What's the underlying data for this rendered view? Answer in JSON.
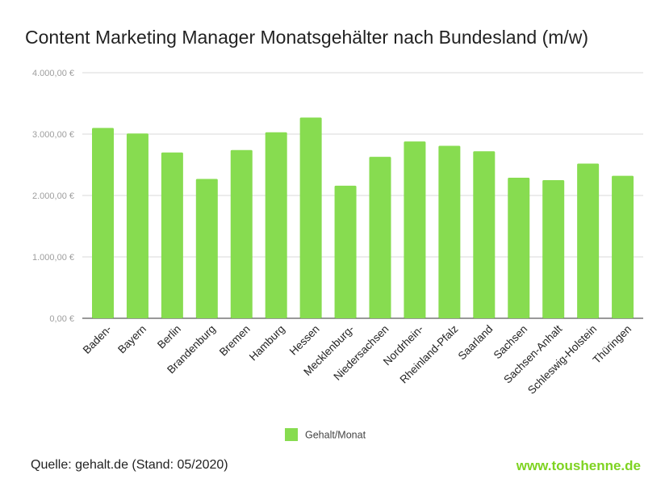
{
  "chart_data": {
    "type": "bar",
    "title": "Content Marketing Manager Monatsgehälter nach Bundesland (m/w)",
    "xlabel": "",
    "ylabel": "",
    "ylim": [
      0,
      4000
    ],
    "y_ticks": [
      0,
      1000,
      2000,
      3000,
      4000
    ],
    "y_tick_labels": [
      "0,00 €",
      "1.000,00 €",
      "2.000,00 €",
      "3.000,00 €",
      "4.000,00 €"
    ],
    "grid": true,
    "categories": [
      "Baden-",
      "Bayern",
      "Berlin",
      "Brandenburg",
      "Bremen",
      "Hamburg",
      "Hessen",
      "Mecklenburg-",
      "Niedersachsen",
      "Nordrhein-",
      "Rheinland-Pfalz",
      "Saarland",
      "Sachsen",
      "Sachsen-Anhalt",
      "Schleswig-Holstein",
      "Thüringen"
    ],
    "series": [
      {
        "name": "Gehalt/Monat",
        "color": "#87dc50",
        "values": [
          3100,
          3010,
          2700,
          2270,
          2740,
          3030,
          3270,
          2160,
          2630,
          2880,
          2810,
          2720,
          2290,
          2250,
          2520,
          2320
        ]
      }
    ],
    "legend_position": "bottom-center"
  },
  "footer": {
    "source": "Quelle: gehalt.de (Stand: 05/2020)",
    "brand": "www.toushenne.de",
    "brand_color": "#7ed321"
  }
}
